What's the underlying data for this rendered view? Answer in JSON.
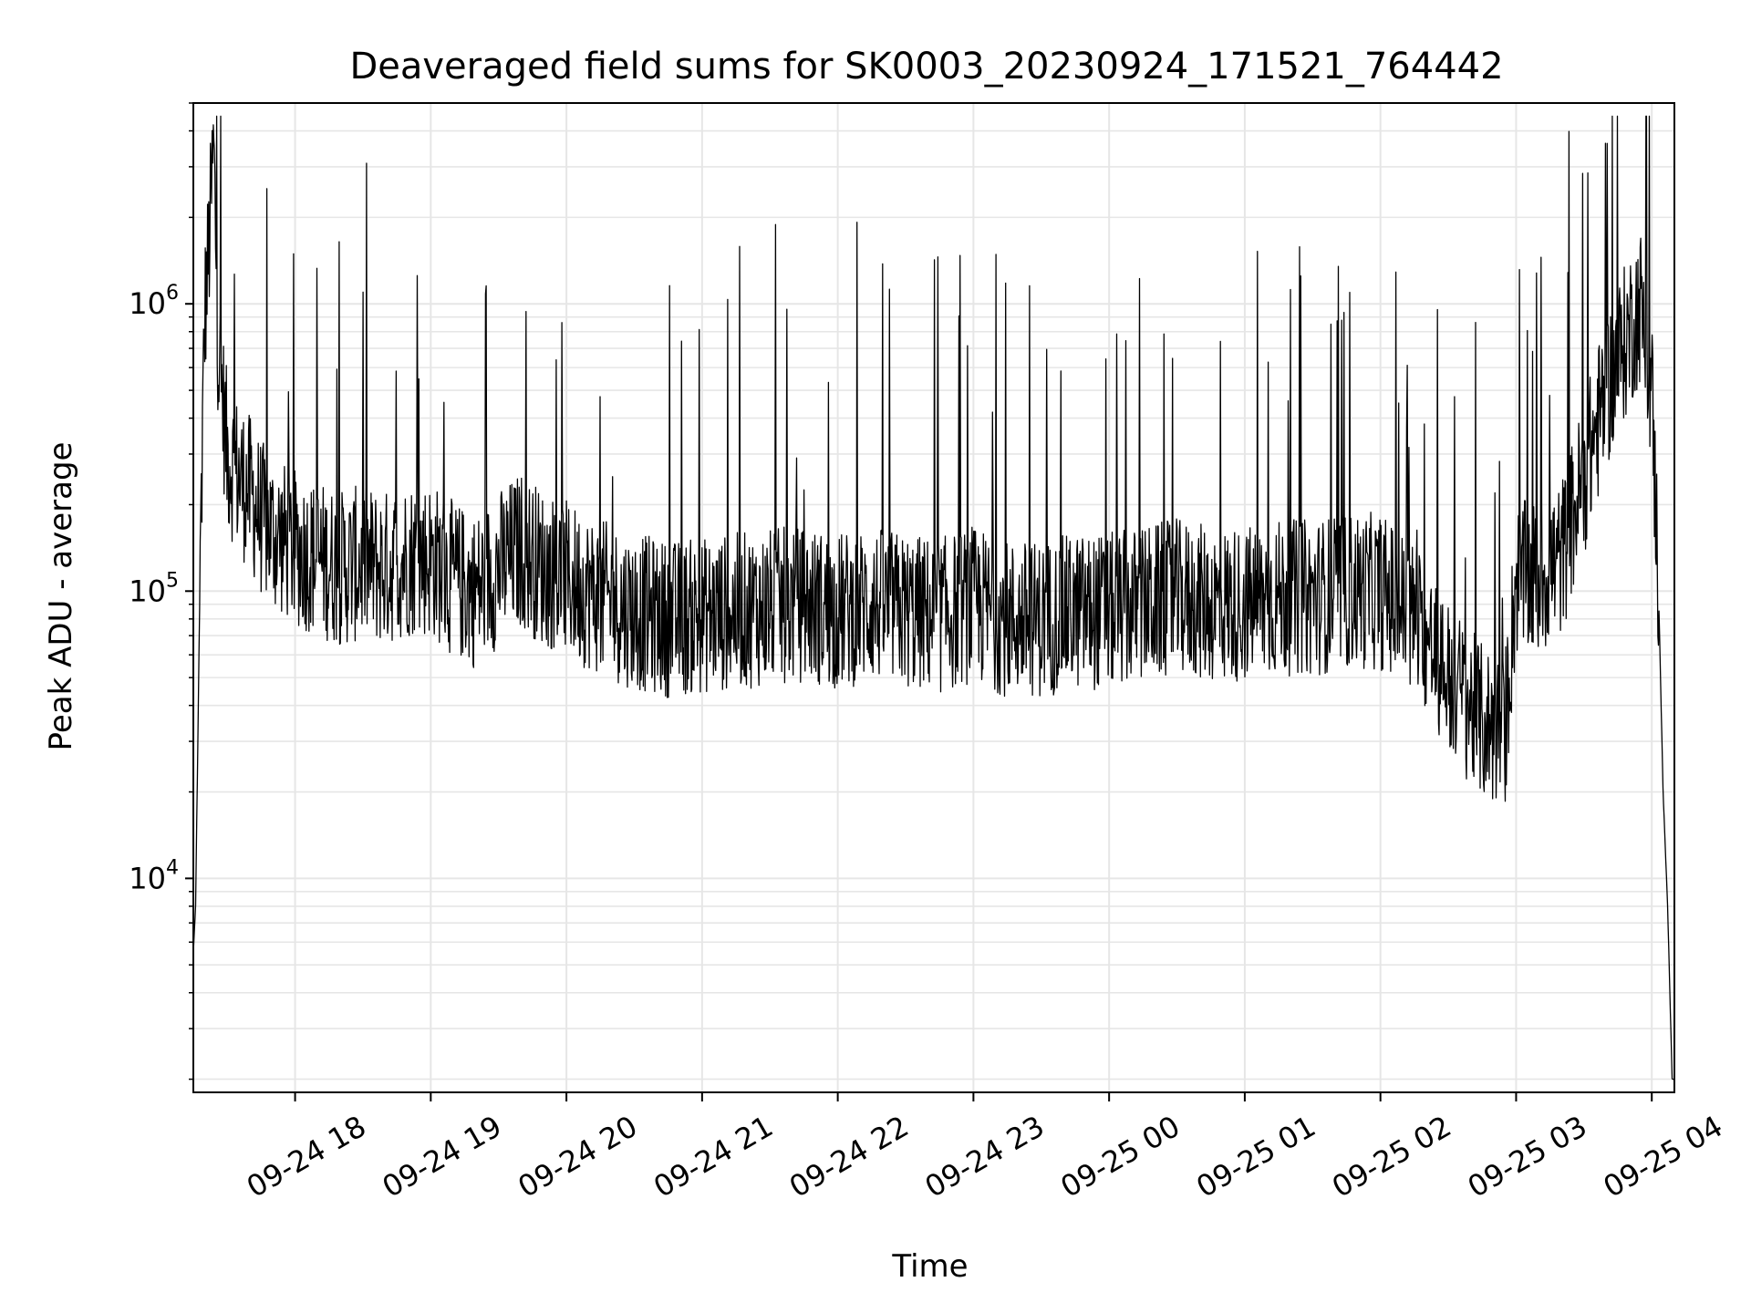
{
  "chart_data": {
    "type": "line",
    "title": "Deaveraged field sums for SK0003_20230924_171521_764442",
    "xlabel": "Time",
    "ylabel": "Peak ADU - average",
    "xlim": [
      "09-24 17:15",
      "09-25 04:10"
    ],
    "ylim": [
      1800,
      5000000
    ],
    "y_scale": "log",
    "grid": true,
    "grid_minor": true,
    "line_color": "#000000",
    "grid_color": "#e6e6e6",
    "x_ticks": [
      {
        "label": "09-24 18",
        "value": "09-24 18:00"
      },
      {
        "label": "09-24 19",
        "value": "09-24 19:00"
      },
      {
        "label": "09-24 20",
        "value": "09-24 20:00"
      },
      {
        "label": "09-24 21",
        "value": "09-24 21:00"
      },
      {
        "label": "09-24 22",
        "value": "09-24 22:00"
      },
      {
        "label": "09-24 23",
        "value": "09-24 23:00"
      },
      {
        "label": "09-25 00",
        "value": "09-25 00:00"
      },
      {
        "label": "09-25 01",
        "value": "09-25 01:00"
      },
      {
        "label": "09-25 02",
        "value": "09-25 02:00"
      },
      {
        "label": "09-25 03",
        "value": "09-25 03:00"
      },
      {
        "label": "09-25 04",
        "value": "09-25 04:00"
      }
    ],
    "y_ticks": [
      {
        "base": "10",
        "exp": "4",
        "value": 10000
      },
      {
        "base": "10",
        "exp": "5",
        "value": 100000
      },
      {
        "base": "10",
        "exp": "6",
        "value": 1000000
      }
    ],
    "series": [
      {
        "points": [
          [
            "09-24 17:15",
            5500
          ],
          [
            "09-24 17:16",
            8000
          ],
          [
            "09-24 17:17",
            30000
          ],
          [
            "09-24 17:18",
            120000
          ],
          [
            "09-24 17:20",
            900000
          ],
          [
            "09-24 17:22",
            1600000
          ],
          [
            "09-24 17:24",
            3500000
          ],
          [
            "09-24 17:26",
            700000
          ],
          [
            "09-24 17:30",
            300000
          ],
          [
            "09-24 17:35",
            250000
          ],
          [
            "09-24 17:40",
            220000
          ],
          [
            "09-24 17:45",
            180000
          ],
          [
            "09-24 17:50",
            160000
          ],
          [
            "09-24 17:55",
            150000
          ],
          [
            "09-24 18:00",
            140000
          ],
          [
            "09-24 18:10",
            130000
          ],
          [
            "09-24 18:20",
            120000
          ],
          [
            "09-24 18:30",
            125000
          ],
          [
            "09-24 18:40",
            120000
          ],
          [
            "09-24 18:50",
            130000
          ],
          [
            "09-24 19:00",
            130000
          ],
          [
            "09-24 19:10",
            110000
          ],
          [
            "09-24 19:20",
            100000
          ],
          [
            "09-24 19:30",
            120000
          ],
          [
            "09-24 19:40",
            140000
          ],
          [
            "09-24 19:50",
            120000
          ],
          [
            "09-24 20:00",
            110000
          ],
          [
            "09-24 20:15",
            95000
          ],
          [
            "09-24 20:30",
            85000
          ],
          [
            "09-24 20:45",
            80000
          ],
          [
            "09-24 21:00",
            82000
          ],
          [
            "09-24 21:15",
            85000
          ],
          [
            "09-24 21:30",
            88000
          ],
          [
            "09-24 21:45",
            90000
          ],
          [
            "09-24 22:00",
            85000
          ],
          [
            "09-24 22:15",
            90000
          ],
          [
            "09-24 22:30",
            85000
          ],
          [
            "09-24 22:45",
            82000
          ],
          [
            "09-24 23:00",
            90000
          ],
          [
            "09-24 23:15",
            80000
          ],
          [
            "09-24 23:30",
            80000
          ],
          [
            "09-24 23:45",
            85000
          ],
          [
            "09-25 00:00",
            85000
          ],
          [
            "09-25 00:15",
            90000
          ],
          [
            "09-25 00:30",
            95000
          ],
          [
            "09-25 00:45",
            90000
          ],
          [
            "09-25 01:00",
            90000
          ],
          [
            "09-25 01:15",
            95000
          ],
          [
            "09-25 01:30",
            95000
          ],
          [
            "09-25 01:45",
            100000
          ],
          [
            "09-25 02:00",
            100000
          ],
          [
            "09-25 02:15",
            80000
          ],
          [
            "09-25 02:30",
            50000
          ],
          [
            "09-25 02:45",
            35000
          ],
          [
            "09-25 02:55",
            32000
          ],
          [
            "09-25 03:00",
            110000
          ],
          [
            "09-25 03:10",
            110000
          ],
          [
            "09-25 03:20",
            130000
          ],
          [
            "09-25 03:30",
            250000
          ],
          [
            "09-25 03:40",
            500000
          ],
          [
            "09-25 03:50",
            800000
          ],
          [
            "09-25 03:55",
            1000000
          ],
          [
            "09-25 04:00",
            500000
          ],
          [
            "09-25 04:03",
            100000
          ],
          [
            "09-25 04:05",
            20000
          ],
          [
            "09-25 04:07",
            8000
          ],
          [
            "09-25 04:09",
            2000
          ]
        ]
      }
    ]
  }
}
